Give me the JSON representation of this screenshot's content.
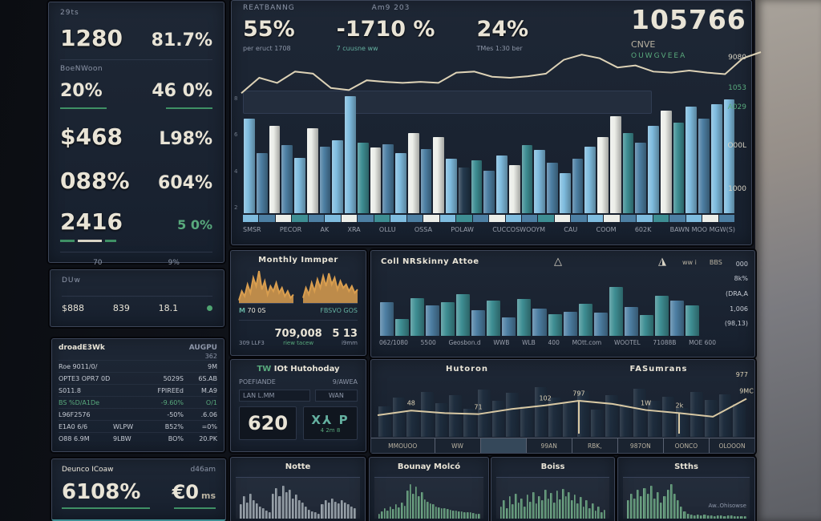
{
  "colors": {
    "accent_green": "#4fa471",
    "gold_line": "#ddd2b6",
    "cream_text": "#e9e4d6",
    "panel_bg": "#1a2230",
    "bar_palette": {
      "lb": "#7fbcdf",
      "sb": "#4d7fa3",
      "wh": "#eceee9",
      "tl": "#3e8e93",
      "dk": "#243a4e",
      "gy": "#8f99a3",
      "gn": "#5f9678",
      "og": "#d99e4f"
    }
  },
  "left_kpis": {
    "label": "29ts",
    "row1": {
      "a": "1280",
      "b": "81.7%"
    },
    "section_label": "BoeNWoon",
    "row2": {
      "a": "20%",
      "b": "46 0%"
    },
    "row3": {
      "a": "$468",
      "b": "L98%"
    },
    "row4": {
      "a": "088%",
      "b": "604%"
    },
    "row5": {
      "a": "2416",
      "b": "5 0%"
    },
    "footer": {
      "a": "70",
      "b": "9%"
    }
  },
  "duw_panel": {
    "label": "DUw",
    "cells": {
      "c1": "$888",
      "c2": "839",
      "c3": "18.1"
    }
  },
  "table_panel": {
    "title": "droadE3Wk",
    "title_right": "AUGPU",
    "sub_right": "362",
    "rows": [
      {
        "cells": [
          "Roe 9011/0/",
          "",
          "",
          "9M"
        ],
        "green": false
      },
      {
        "cells": [
          "OPTE3 OPR7 0D",
          "",
          "5029S",
          "6S.AB"
        ],
        "green": false
      },
      {
        "cells": [
          "S011.8",
          "",
          "FPIREEd",
          "M.A9"
        ],
        "green": false
      },
      {
        "cells": [
          "BS %D/A1De",
          "",
          "-9.60%",
          "O/1"
        ],
        "green": true
      },
      {
        "cells": [
          "L96F2576",
          "",
          "-50%",
          ".6.06"
        ],
        "green": false
      },
      {
        "cells": [
          "E1A0 6/6",
          "WLPW",
          "B52%",
          "=0%"
        ],
        "green": false
      },
      {
        "cells": [
          "O88 6.9M",
          "9LBW",
          "BO%",
          "20.PK"
        ],
        "green": false
      }
    ]
  },
  "device_panel": {
    "title": "Deunco ICoaw",
    "title_right": "d46am",
    "value1": "6108%",
    "value2": "€0",
    "value2_suffix": "ms"
  },
  "main": {
    "title": "REATBANNG",
    "period": "Am9 203",
    "kpis": [
      {
        "value": "55%",
        "sub": "per eruct 1708"
      },
      {
        "value": "-1710 %",
        "sub": "7 cuusne ww"
      },
      {
        "value": "24%",
        "sub": "TMes 1:30 ber"
      }
    ],
    "big": {
      "value": "105766",
      "unit": "CNVE",
      "sub": "OUWGVEEA"
    }
  },
  "monthly": {
    "title": "Monthly Immper",
    "spark_a_tag": "M",
    "spark_a_label": "70 0S",
    "spark_b_label": "FBSVO GOS",
    "bot_left": "309 LLF3",
    "bot_big": "709,008",
    "bot_big_sub": "riew tacew",
    "bot_right": "5 13",
    "bot_right_sub": "i9mm"
  },
  "tw_panel": {
    "title_tag": "TW",
    "title": "IOt Hutohoday",
    "head_left": "POEFIANDE",
    "head_right": "9/AWEA",
    "cell_left": "LAN L.MM",
    "cell_right": "WAN",
    "big_value": "620",
    "glyph": "X⅄ P",
    "glyph_sub": "4 2m 8"
  },
  "center_panel": {
    "title": "Coll NRSkinny Attoe",
    "icon_a": "△",
    "icon_b": "◮",
    "top_lab_a": "ww i",
    "top_lab_b": "BBS"
  },
  "forecast_panel": {
    "title_left": "Hutoron",
    "title_right": "FASumrans",
    "corner": "977"
  },
  "spark_titles": {
    "notte": "Notte",
    "bounay": "Bounay Molcó",
    "boiss": "Boiss",
    "stths": "Stths",
    "stths_note": "Aw..Ohisowse"
  },
  "chart_data": [
    {
      "id": "main-bars",
      "type": "bar",
      "title": "REATBANNG",
      "period": "Am9 203",
      "values": [
        {
          "v": 78,
          "c": "lb"
        },
        {
          "v": 50,
          "c": "sb"
        },
        {
          "v": 72,
          "c": "wh"
        },
        {
          "v": 56,
          "c": "sb"
        },
        {
          "v": 46,
          "c": "lb"
        },
        {
          "v": 70,
          "c": "wh"
        },
        {
          "v": 55,
          "c": "sb"
        },
        {
          "v": 60,
          "c": "lb"
        },
        {
          "v": 97,
          "c": "lb"
        },
        {
          "v": 58,
          "c": "tl"
        },
        {
          "v": 54,
          "c": "wh"
        },
        {
          "v": 57,
          "c": "sb"
        },
        {
          "v": 50,
          "c": "lb"
        },
        {
          "v": 66,
          "c": "wh"
        },
        {
          "v": 53,
          "c": "sb"
        },
        {
          "v": 63,
          "c": "wh"
        },
        {
          "v": 45,
          "c": "lb"
        },
        {
          "v": 38,
          "c": "dk"
        },
        {
          "v": 44,
          "c": "tl"
        },
        {
          "v": 35,
          "c": "sb"
        },
        {
          "v": 48,
          "c": "lb"
        },
        {
          "v": 40,
          "c": "wh"
        },
        {
          "v": 56,
          "c": "tl"
        },
        {
          "v": 52,
          "c": "lb"
        },
        {
          "v": 42,
          "c": "sb"
        },
        {
          "v": 33,
          "c": "lb"
        },
        {
          "v": 45,
          "c": "sb"
        },
        {
          "v": 55,
          "c": "lb"
        },
        {
          "v": 63,
          "c": "wh"
        },
        {
          "v": 80,
          "c": "wh"
        },
        {
          "v": 66,
          "c": "tl"
        },
        {
          "v": 58,
          "c": "sb"
        },
        {
          "v": 72,
          "c": "lb"
        },
        {
          "v": 85,
          "c": "wh"
        },
        {
          "v": 75,
          "c": "tl"
        },
        {
          "v": 88,
          "c": "lb"
        },
        {
          "v": 78,
          "c": "sb"
        },
        {
          "v": 90,
          "c": "lb"
        },
        {
          "v": 94,
          "c": "lb"
        }
      ],
      "overlay_line": {
        "values": [
          20,
          50,
          40,
          62,
          58,
          30,
          26,
          45,
          42,
          40,
          42,
          40,
          60,
          62,
          52,
          50,
          53,
          58,
          85,
          95,
          88,
          70,
          74,
          62,
          60,
          64,
          60,
          57,
          88,
          100
        ],
        "color": "#ddd2b6"
      },
      "xlabels": [
        "SMSR",
        "PECOR",
        "AK",
        "XRA",
        "OLLU",
        "OSSA",
        "POLAW",
        "CUCCOSWOOYM",
        "CAU",
        "COOM",
        "602K",
        "BAWN MOO MGW(S)"
      ],
      "right_axis": [
        {
          "t": "9080",
          "cls": ""
        },
        {
          "t": "1053",
          "cls": "grn"
        },
        {
          "t": "A029",
          "cls": "grn"
        },
        {
          "t": "O00L",
          "cls": ""
        },
        {
          "t": "1000",
          "cls": ""
        }
      ],
      "left_axis": [
        "8",
        "6",
        "4",
        "2"
      ],
      "strip": [
        "lb",
        "sb",
        "wh",
        "tl",
        "sb",
        "lb",
        "wh",
        "sb",
        "tl",
        "lb",
        "sb",
        "wh",
        "lb",
        "tl",
        "sb",
        "wh",
        "lb",
        "sb",
        "tl",
        "wh",
        "sb",
        "lb",
        "wh",
        "sb",
        "lb",
        "tl",
        "sb",
        "lb",
        "wh",
        "sb"
      ]
    },
    {
      "id": "center-bars",
      "type": "bar",
      "title": "Coll NRSkinny Attoe",
      "values": [
        {
          "v": 55,
          "c": "sb"
        },
        {
          "v": 28,
          "c": "tl"
        },
        {
          "v": 62,
          "c": "tl"
        },
        {
          "v": 50,
          "c": "sb"
        },
        {
          "v": 55,
          "c": "tl"
        },
        {
          "v": 68,
          "c": "tl"
        },
        {
          "v": 42,
          "c": "sb"
        },
        {
          "v": 58,
          "c": "tl"
        },
        {
          "v": 30,
          "c": "sb"
        },
        {
          "v": 60,
          "c": "tl"
        },
        {
          "v": 45,
          "c": "sb"
        },
        {
          "v": 35,
          "c": "tl"
        },
        {
          "v": 40,
          "c": "sb"
        },
        {
          "v": 52,
          "c": "tl"
        },
        {
          "v": 38,
          "c": "sb"
        },
        {
          "v": 80,
          "c": "tl"
        },
        {
          "v": 48,
          "c": "sb"
        },
        {
          "v": 34,
          "c": "tl"
        },
        {
          "v": 66,
          "c": "tl"
        },
        {
          "v": 58,
          "c": "sb"
        },
        {
          "v": 50,
          "c": "tl"
        }
      ],
      "xlabels": [
        "062/1080",
        "5500",
        "Geosbon.d",
        "WWB",
        "WLB",
        "400",
        "MOtt.com",
        "WOOTEL",
        "71088B",
        "MOE 600"
      ],
      "right_labels": [
        "000",
        "8k%",
        "(DRA,A",
        "1,006",
        "(98,13)"
      ]
    },
    {
      "id": "forecast",
      "type": "line",
      "titles": [
        "Hutoron",
        "FASumrans"
      ],
      "line": {
        "values": [
          36,
          45,
          40,
          38,
          48,
          55,
          64,
          58,
          46,
          40,
          33,
          68
        ],
        "labels": [
          "",
          "48",
          "",
          "71",
          "",
          "102",
          "797",
          "",
          "1W",
          "2k",
          "",
          "9MC"
        ],
        "markers": [
          6,
          9
        ],
        "color": "#d9c9a4"
      },
      "bg_bars": [
        55,
        70,
        45,
        80,
        60,
        75,
        50,
        85,
        65,
        78,
        55,
        88,
        70,
        60,
        82,
        48,
        75,
        58,
        86,
        64,
        72,
        52,
        80,
        66,
        76,
        58
      ],
      "footer": [
        {
          "t": "MMOUOO",
          "cls": ""
        },
        {
          "t": "WW",
          "cls": ""
        },
        {
          "t": "",
          "cls": "hl"
        },
        {
          "t": "99AN",
          "cls": ""
        },
        {
          "t": "RBK,",
          "cls": ""
        },
        {
          "t": "987ON",
          "cls": ""
        },
        {
          "t": "OONCO",
          "cls": ""
        },
        {
          "t": "OLOOON",
          "cls": ""
        }
      ]
    },
    {
      "id": "monthly-a",
      "type": "area",
      "values": [
        8,
        35,
        20,
        55,
        30,
        75,
        50,
        95,
        40,
        65,
        25,
        50,
        35,
        60,
        30,
        45,
        20,
        35,
        15,
        25
      ],
      "color": "#d99e4f"
    },
    {
      "id": "monthly-b",
      "type": "area",
      "values": [
        15,
        45,
        25,
        60,
        35,
        70,
        45,
        80,
        50,
        88,
        55,
        75,
        40,
        65,
        45,
        55,
        35,
        50,
        30,
        40
      ],
      "color": "#d99e4f"
    },
    {
      "id": "spark-notte",
      "type": "bar",
      "values": [
        35,
        55,
        40,
        60,
        45,
        38,
        30,
        25,
        20,
        15,
        60,
        75,
        55,
        80,
        65,
        70,
        50,
        58,
        45,
        40,
        30,
        22,
        18,
        15,
        12,
        35,
        45,
        40,
        50,
        42,
        38,
        45,
        40,
        35,
        30,
        25
      ]
    },
    {
      "id": "spark-bounay",
      "type": "bar",
      "values": [
        12,
        18,
        25,
        20,
        30,
        24,
        35,
        28,
        40,
        32,
        68,
        85,
        60,
        78,
        55,
        65,
        48,
        42,
        38,
        35,
        30,
        28,
        26,
        25,
        24,
        22,
        20,
        20,
        18,
        18,
        16,
        15,
        15,
        14,
        12,
        12
      ]
    },
    {
      "id": "spark-boiss",
      "type": "bar",
      "values": [
        30,
        45,
        25,
        55,
        35,
        60,
        40,
        50,
        30,
        58,
        42,
        65,
        38,
        55,
        45,
        70,
        50,
        62,
        40,
        68,
        48,
        72,
        55,
        65,
        45,
        58,
        38,
        52,
        30,
        45,
        25,
        38,
        20,
        30,
        15,
        22
      ]
    },
    {
      "id": "spark-stths",
      "type": "bar",
      "values": [
        45,
        60,
        50,
        70,
        55,
        75,
        60,
        80,
        50,
        65,
        40,
        55,
        70,
        85,
        60,
        45,
        30,
        18,
        12,
        10,
        8,
        10,
        8,
        9,
        7,
        8,
        6,
        8,
        7,
        6,
        8,
        7,
        6,
        5,
        6,
        5
      ]
    }
  ]
}
